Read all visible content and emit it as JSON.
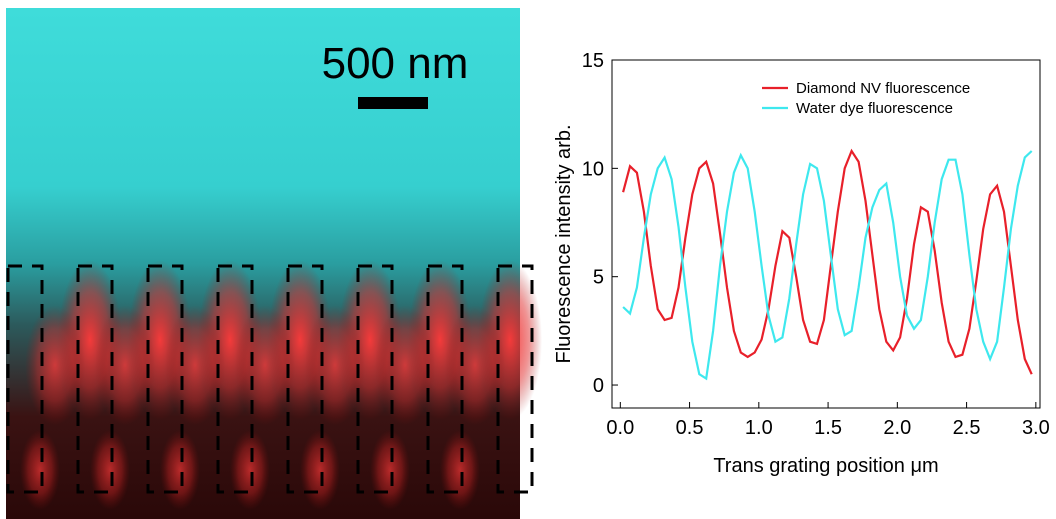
{
  "image": {
    "scale_label": "500 nm"
  },
  "chart_data": {
    "type": "line",
    "xlabel": "Trans  grating position  μm",
    "ylabel": "Fluorescence intensity  arb.",
    "xlim": [
      -0.06,
      3.03
    ],
    "ylim": [
      -1.06,
      15
    ],
    "xticks": [
      {
        "value": 0,
        "label": "0.0"
      },
      0.5,
      {
        "value": 1,
        "label": "1.0"
      },
      1.5,
      {
        "value": 2,
        "label": "2.0"
      },
      2.5,
      {
        "value": 3,
        "label": "3.0"
      }
    ],
    "yticks": [
      0,
      5,
      10,
      15
    ],
    "legend": "upper-right",
    "x": [
      0.02,
      0.07,
      0.12,
      0.17,
      0.22,
      0.27,
      0.32,
      0.37,
      0.42,
      0.47,
      0.52,
      0.57,
      0.62,
      0.67,
      0.72,
      0.77,
      0.82,
      0.87,
      0.92,
      0.97,
      1.02,
      1.07,
      1.12,
      1.17,
      1.22,
      1.27,
      1.32,
      1.37,
      1.42,
      1.47,
      1.52,
      1.57,
      1.62,
      1.67,
      1.72,
      1.77,
      1.82,
      1.87,
      1.92,
      1.97,
      2.02,
      2.07,
      2.12,
      2.17,
      2.22,
      2.27,
      2.32,
      2.37,
      2.42,
      2.47,
      2.52,
      2.57,
      2.62,
      2.67,
      2.72,
      2.77,
      2.82,
      2.87,
      2.92,
      2.97
    ],
    "series": [
      {
        "name": "Diamond NV fluorescence",
        "color": "#e8202a",
        "values": [
          8.9,
          10.1,
          9.8,
          8.0,
          5.5,
          3.5,
          3.0,
          3.1,
          4.5,
          6.8,
          8.8,
          10.0,
          10.3,
          9.3,
          7.0,
          4.5,
          2.5,
          1.5,
          1.3,
          1.5,
          2.1,
          3.5,
          5.5,
          7.1,
          6.8,
          5.0,
          3.0,
          2.0,
          1.9,
          3.0,
          5.5,
          8.0,
          10.0,
          10.8,
          10.3,
          8.5,
          6.0,
          3.5,
          2.0,
          1.6,
          2.2,
          4.0,
          6.5,
          8.2,
          8.0,
          6.2,
          3.8,
          2.0,
          1.3,
          1.4,
          2.6,
          4.8,
          7.2,
          8.8,
          9.2,
          8.0,
          5.5,
          3.0,
          1.2,
          0.5
        ]
      },
      {
        "name": "Water dye fluorescence",
        "color": "#3ee8ee",
        "values": [
          3.6,
          3.3,
          4.5,
          6.8,
          8.8,
          10.0,
          10.5,
          9.5,
          7.3,
          4.5,
          2.0,
          0.5,
          0.3,
          2.5,
          5.5,
          8.0,
          9.8,
          10.6,
          10.0,
          8.0,
          5.5,
          3.2,
          2.0,
          2.2,
          4.0,
          6.5,
          8.8,
          10.2,
          10.0,
          8.5,
          6.0,
          3.5,
          2.3,
          2.5,
          4.5,
          6.8,
          8.2,
          9.0,
          9.3,
          7.5,
          5.0,
          3.2,
          2.6,
          3.0,
          5.0,
          7.5,
          9.5,
          10.4,
          10.4,
          8.8,
          6.0,
          3.5,
          2.0,
          1.2,
          2.0,
          4.5,
          7.2,
          9.2,
          10.5,
          10.8
        ]
      }
    ]
  }
}
